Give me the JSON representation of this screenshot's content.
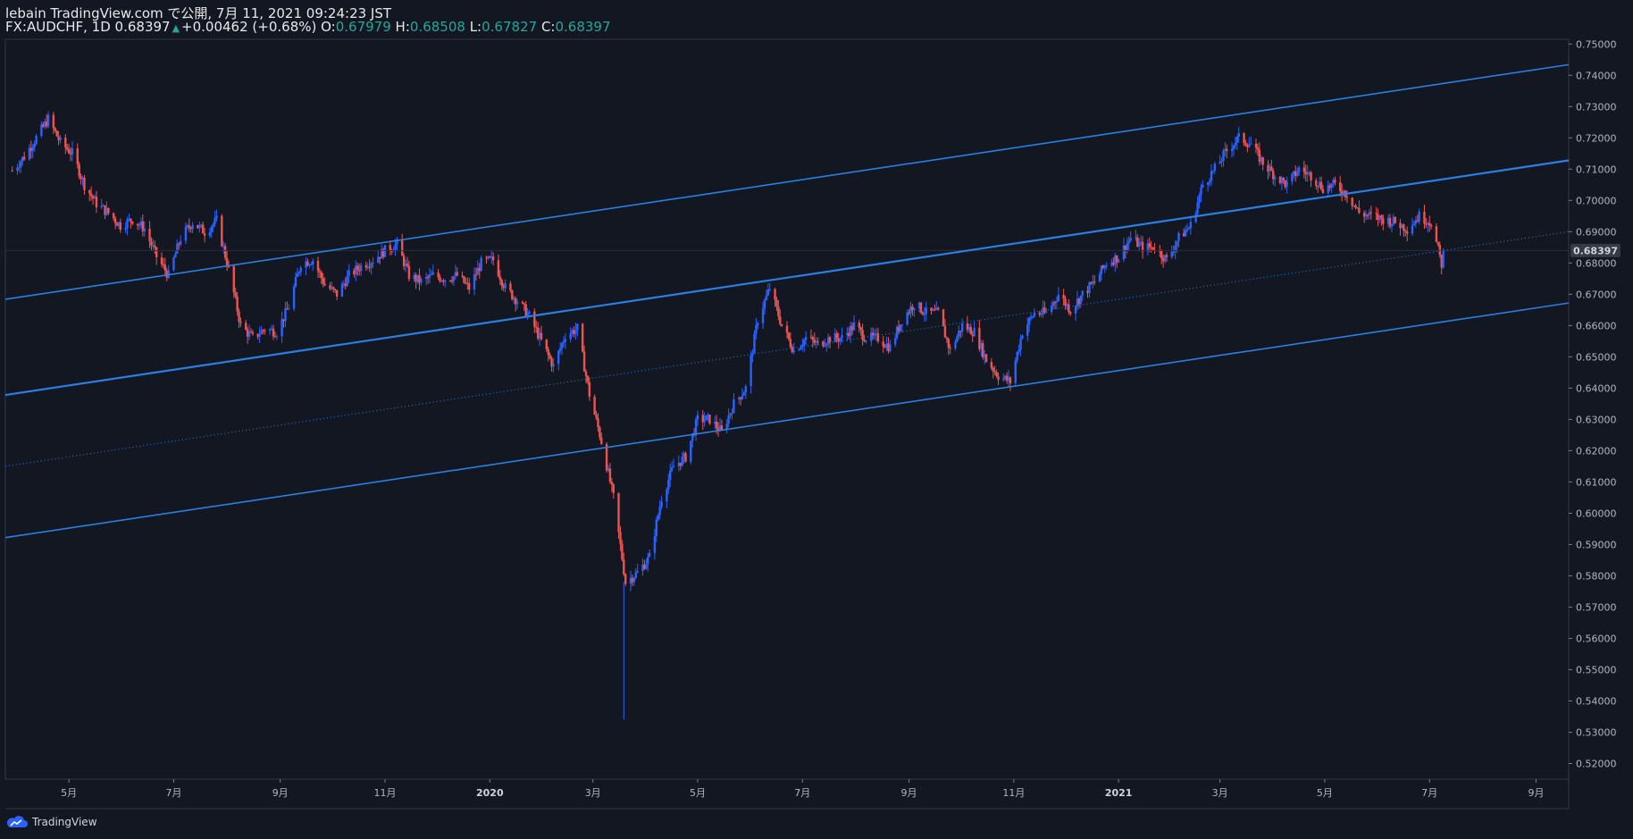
{
  "header": {
    "published_line": "lebain TradingView.com で公開, 7月 11, 2021 09:24:23 JST",
    "symbol": "FX:AUDCHF, 1D",
    "last": "0.68397",
    "change": "+0.00462 (+0.68%)",
    "o_label": "O:",
    "o_value": "0.67979",
    "h_label": "H:",
    "h_value": "0.68508",
    "l_label": "L:",
    "l_value": "0.67827",
    "c_label": "C:",
    "c_value": "0.68397"
  },
  "footer": {
    "brand": "TradingView",
    "icon": "tradingview-cloud-icon"
  },
  "colors": {
    "background": "#131722",
    "up": "#2962ff",
    "down": "#ef5350",
    "channel": "#2b7fe3",
    "grid": "#1e222d",
    "axis_text": "#b2b5be",
    "price_tag_bg": "#363a45"
  },
  "chart_data": {
    "type": "candlestick",
    "symbol": "FX:AUDCHF",
    "interval": "1D",
    "y_range": [
      0.515,
      0.7515
    ],
    "y_ticks": [
      "0.52000",
      "0.53000",
      "0.54000",
      "0.55000",
      "0.56000",
      "0.57000",
      "0.58000",
      "0.59000",
      "0.60000",
      "0.61000",
      "0.62000",
      "0.63000",
      "0.64000",
      "0.65000",
      "0.66000",
      "0.67000",
      "0.68000",
      "0.69000",
      "0.70000",
      "0.71000",
      "0.72000",
      "0.73000",
      "0.74000",
      "0.75000"
    ],
    "x_ticks": [
      {
        "label": "5月",
        "date": "2019-05-01",
        "bold": false
      },
      {
        "label": "7月",
        "date": "2019-07-01",
        "bold": false
      },
      {
        "label": "9月",
        "date": "2019-09-01",
        "bold": false
      },
      {
        "label": "11月",
        "date": "2019-11-01",
        "bold": false
      },
      {
        "label": "2020",
        "date": "2020-01-01",
        "bold": true
      },
      {
        "label": "3月",
        "date": "2020-03-01",
        "bold": false
      },
      {
        "label": "5月",
        "date": "2020-05-01",
        "bold": false
      },
      {
        "label": "7月",
        "date": "2020-07-01",
        "bold": false
      },
      {
        "label": "9月",
        "date": "2020-09-01",
        "bold": false
      },
      {
        "label": "11月",
        "date": "2020-11-01",
        "bold": false
      },
      {
        "label": "2021",
        "date": "2021-01-01",
        "bold": true
      },
      {
        "label": "3月",
        "date": "2021-03-01",
        "bold": false
      },
      {
        "label": "5月",
        "date": "2021-05-01",
        "bold": false
      },
      {
        "label": "7月",
        "date": "2021-07-01",
        "bold": false
      },
      {
        "label": "9月",
        "date": "2021-09-01",
        "bold": false
      }
    ],
    "last_price_label": "0.68397",
    "last_price": 0.68397,
    "close_path": [
      [
        "2019-03-29",
        0.7095
      ],
      [
        "2019-04-05",
        0.714
      ],
      [
        "2019-04-12",
        0.72
      ],
      [
        "2019-04-19",
        0.726
      ],
      [
        "2019-04-26",
        0.7185
      ],
      [
        "2019-05-03",
        0.715
      ],
      [
        "2019-05-10",
        0.705
      ],
      [
        "2019-05-17",
        0.699
      ],
      [
        "2019-05-24",
        0.696
      ],
      [
        "2019-05-31",
        0.692
      ],
      [
        "2019-06-07",
        0.694
      ],
      [
        "2019-06-14",
        0.691
      ],
      [
        "2019-06-21",
        0.682
      ],
      [
        "2019-06-28",
        0.676
      ],
      [
        "2019-07-05",
        0.688
      ],
      [
        "2019-07-12",
        0.693
      ],
      [
        "2019-07-19",
        0.69
      ],
      [
        "2019-07-26",
        0.6935
      ],
      [
        "2019-08-02",
        0.678
      ],
      [
        "2019-08-09",
        0.66
      ],
      [
        "2019-08-16",
        0.656
      ],
      [
        "2019-08-23",
        0.659
      ],
      [
        "2019-08-30",
        0.658
      ],
      [
        "2019-09-06",
        0.666
      ],
      [
        "2019-09-13",
        0.68
      ],
      [
        "2019-09-20",
        0.681
      ],
      [
        "2019-09-27",
        0.673
      ],
      [
        "2019-10-04",
        0.67
      ],
      [
        "2019-10-11",
        0.676
      ],
      [
        "2019-10-18",
        0.679
      ],
      [
        "2019-10-25",
        0.681
      ],
      [
        "2019-11-01",
        0.684
      ],
      [
        "2019-11-08",
        0.686
      ],
      [
        "2019-11-15",
        0.676
      ],
      [
        "2019-11-22",
        0.674
      ],
      [
        "2019-11-29",
        0.676
      ],
      [
        "2019-12-06",
        0.675
      ],
      [
        "2019-12-13",
        0.676
      ],
      [
        "2019-12-20",
        0.672
      ],
      [
        "2019-12-27",
        0.68
      ],
      [
        "2020-01-03",
        0.681
      ],
      [
        "2020-01-10",
        0.672
      ],
      [
        "2020-01-17",
        0.668
      ],
      [
        "2020-01-24",
        0.663
      ],
      [
        "2020-01-31",
        0.655
      ],
      [
        "2020-02-07",
        0.647
      ],
      [
        "2020-02-14",
        0.657
      ],
      [
        "2020-02-21",
        0.659
      ],
      [
        "2020-02-28",
        0.638
      ],
      [
        "2020-03-06",
        0.623
      ],
      [
        "2020-03-13",
        0.605
      ],
      [
        "2020-03-20",
        0.578
      ],
      [
        "2020-03-27",
        0.581
      ],
      [
        "2020-04-03",
        0.586
      ],
      [
        "2020-04-10",
        0.605
      ],
      [
        "2020-04-17",
        0.615
      ],
      [
        "2020-04-24",
        0.618
      ],
      [
        "2020-05-01",
        0.63
      ],
      [
        "2020-05-08",
        0.63
      ],
      [
        "2020-05-15",
        0.626
      ],
      [
        "2020-05-22",
        0.635
      ],
      [
        "2020-05-29",
        0.64
      ],
      [
        "2020-06-05",
        0.662
      ],
      [
        "2020-06-12",
        0.672
      ],
      [
        "2020-06-19",
        0.66
      ],
      [
        "2020-06-26",
        0.652
      ],
      [
        "2020-07-03",
        0.656
      ],
      [
        "2020-07-10",
        0.654
      ],
      [
        "2020-07-17",
        0.656
      ],
      [
        "2020-07-24",
        0.656
      ],
      [
        "2020-07-31",
        0.66
      ],
      [
        "2020-08-07",
        0.656
      ],
      [
        "2020-08-14",
        0.656
      ],
      [
        "2020-08-21",
        0.653
      ],
      [
        "2020-08-28",
        0.662
      ],
      [
        "2020-09-04",
        0.667
      ],
      [
        "2020-09-11",
        0.664
      ],
      [
        "2020-09-18",
        0.664
      ],
      [
        "2020-09-25",
        0.652
      ],
      [
        "2020-10-02",
        0.66
      ],
      [
        "2020-10-09",
        0.658
      ],
      [
        "2020-10-16",
        0.649
      ],
      [
        "2020-10-23",
        0.644
      ],
      [
        "2020-10-30",
        0.642
      ],
      [
        "2020-11-06",
        0.658
      ],
      [
        "2020-11-13",
        0.664
      ],
      [
        "2020-11-20",
        0.664
      ],
      [
        "2020-11-27",
        0.67
      ],
      [
        "2020-12-04",
        0.665
      ],
      [
        "2020-12-11",
        0.67
      ],
      [
        "2020-12-18",
        0.674
      ],
      [
        "2020-12-25",
        0.68
      ],
      [
        "2021-01-01",
        0.682
      ],
      [
        "2021-01-08",
        0.688
      ],
      [
        "2021-01-15",
        0.685
      ],
      [
        "2021-01-22",
        0.685
      ],
      [
        "2021-01-29",
        0.681
      ],
      [
        "2021-02-05",
        0.688
      ],
      [
        "2021-02-12",
        0.692
      ],
      [
        "2021-02-19",
        0.705
      ],
      [
        "2021-02-26",
        0.71
      ],
      [
        "2021-03-05",
        0.716
      ],
      [
        "2021-03-12",
        0.72
      ],
      [
        "2021-03-19",
        0.718
      ],
      [
        "2021-03-26",
        0.712
      ],
      [
        "2021-04-02",
        0.708
      ],
      [
        "2021-04-09",
        0.705
      ],
      [
        "2021-04-16",
        0.71
      ],
      [
        "2021-04-23",
        0.708
      ],
      [
        "2021-04-30",
        0.704
      ],
      [
        "2021-05-07",
        0.705
      ],
      [
        "2021-05-14",
        0.702
      ],
      [
        "2021-05-21",
        0.696
      ],
      [
        "2021-05-28",
        0.695
      ],
      [
        "2021-06-04",
        0.694
      ],
      [
        "2021-06-11",
        0.693
      ],
      [
        "2021-06-18",
        0.691
      ],
      [
        "2021-06-25",
        0.695
      ],
      [
        "2021-07-02",
        0.693
      ],
      [
        "2021-07-08",
        0.6797
      ],
      [
        "2021-07-09",
        0.68397
      ]
    ],
    "channels": [
      {
        "style": "solid",
        "points": [
          [
            "2019-03-25",
            0.6684
          ],
          [
            "2021-09-20",
            0.7434
          ]
        ]
      },
      {
        "style": "solid-thick",
        "points": [
          [
            "2019-03-25",
            0.6378
          ],
          [
            "2021-09-20",
            0.7128
          ]
        ]
      },
      {
        "style": "dotted",
        "points": [
          [
            "2019-03-25",
            0.615
          ],
          [
            "2021-09-20",
            0.69
          ]
        ]
      },
      {
        "style": "solid",
        "points": [
          [
            "2019-03-25",
            0.5922
          ],
          [
            "2021-09-20",
            0.6672
          ]
        ]
      }
    ],
    "grid": false,
    "legend": "none"
  }
}
